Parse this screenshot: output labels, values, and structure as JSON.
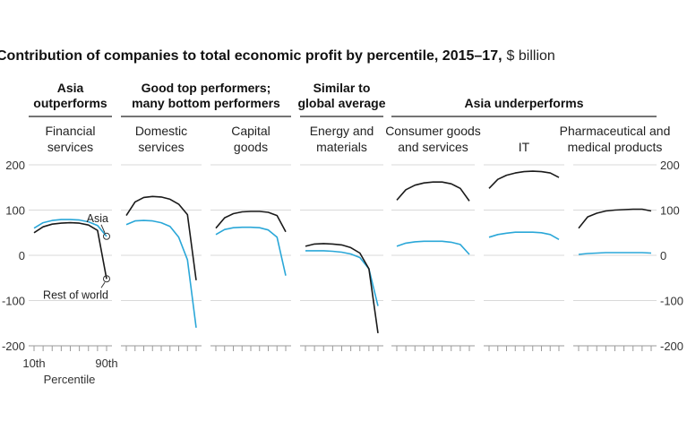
{
  "chart_data": {
    "type": "line",
    "title": "Contribution of companies to total economic profit by percentile, 2015–17,",
    "title_unit": "$ billion",
    "xlabel": "Percentile",
    "x_tick_labels": [
      "10th",
      "90th"
    ],
    "x": [
      10,
      20,
      30,
      40,
      50,
      60,
      70,
      80,
      90
    ],
    "ylim": [
      -200,
      200
    ],
    "y_ticks": [
      200,
      100,
      0,
      -100,
      -200
    ],
    "y_tick_labels": [
      "200",
      "100",
      "0",
      "-100",
      "-200"
    ],
    "annotations": {
      "asia": "Asia",
      "rest_of_world": "Rest of world"
    },
    "colors": {
      "asia": "#2aa7d8",
      "rest_of_world": "#1a1a1a",
      "axis": "#999999"
    },
    "groups": [
      {
        "label": [
          "Asia",
          "outperforms"
        ],
        "panel_count": 1
      },
      {
        "label": [
          "Good top performers;",
          "many bottom performers"
        ],
        "panel_count": 2
      },
      {
        "label": [
          "Similar to",
          "global average"
        ],
        "panel_count": 1
      },
      {
        "label": [
          "Asia underperforms"
        ],
        "panel_count": 3
      }
    ],
    "panels": [
      {
        "name": [
          "Financial",
          "services"
        ],
        "series": [
          {
            "name": "Asia",
            "values": [
              60,
              72,
              77,
              79,
              79,
              78,
              74,
              66,
              42
            ]
          },
          {
            "name": "Rest of world",
            "values": [
              50,
              63,
              69,
              71,
              72,
              71,
              67,
              55,
              -52
            ]
          }
        ]
      },
      {
        "name": [
          "Domestic",
          "services"
        ],
        "series": [
          {
            "name": "Asia",
            "values": [
              68,
              76,
              77,
              76,
              72,
              64,
              40,
              -10,
              -160
            ]
          },
          {
            "name": "Rest of world",
            "values": [
              88,
              118,
              128,
              130,
              129,
              124,
              113,
              90,
              -55
            ]
          }
        ]
      },
      {
        "name": [
          "Capital",
          "goods"
        ],
        "series": [
          {
            "name": "Asia",
            "values": [
              46,
              57,
              61,
              62,
              62,
              61,
              56,
              40,
              -45
            ]
          },
          {
            "name": "Rest of world",
            "values": [
              60,
              83,
              92,
              96,
              97,
              97,
              95,
              88,
              52
            ]
          }
        ]
      },
      {
        "name": [
          "Energy and",
          "materials"
        ],
        "series": [
          {
            "name": "Asia",
            "values": [
              10,
              10,
              10,
              9,
              7,
              3,
              -5,
              -30,
              -112
            ]
          },
          {
            "name": "Rest of world",
            "values": [
              20,
              25,
              26,
              25,
              23,
              17,
              5,
              -30,
              -172
            ]
          }
        ]
      },
      {
        "name": [
          "Consumer goods",
          "and services"
        ],
        "series": [
          {
            "name": "Asia",
            "values": [
              20,
              27,
              30,
              31,
              31,
              31,
              29,
              24,
              2
            ]
          },
          {
            "name": "Rest of world",
            "values": [
              122,
              145,
              155,
              160,
              162,
              162,
              158,
              148,
              120
            ]
          }
        ]
      },
      {
        "name": [
          "IT"
        ],
        "series": [
          {
            "name": "Asia",
            "values": [
              40,
              46,
              49,
              51,
              51,
              51,
              50,
              46,
              35
            ]
          },
          {
            "name": "Rest of world",
            "values": [
              148,
              168,
              177,
              182,
              185,
              186,
              185,
              182,
              172
            ]
          }
        ]
      },
      {
        "name": [
          "Pharmaceutical and",
          "medical products"
        ],
        "series": [
          {
            "name": "Asia",
            "values": [
              2,
              4,
              5,
              6,
              6,
              6,
              6,
              6,
              5
            ]
          },
          {
            "name": "Rest of world",
            "values": [
              60,
              85,
              93,
              98,
              100,
              101,
              102,
              102,
              98
            ]
          }
        ]
      }
    ]
  }
}
